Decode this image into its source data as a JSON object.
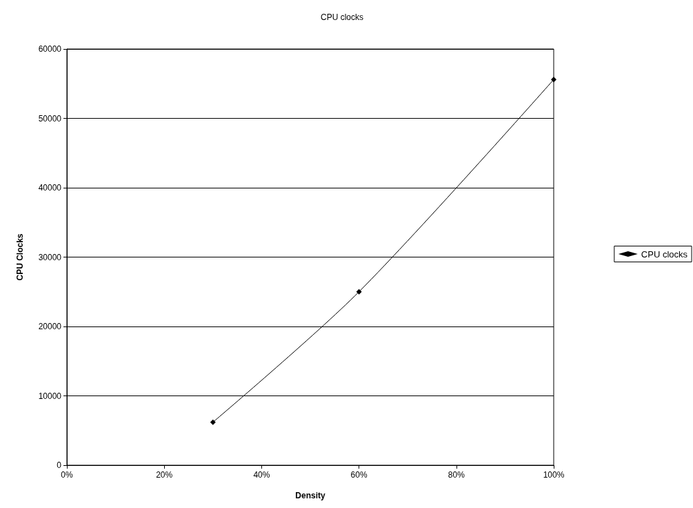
{
  "chart_data": {
    "type": "line",
    "title": "CPU clocks",
    "xlabel": "Density",
    "ylabel": "CPU Clocks",
    "x": [
      30,
      60,
      100
    ],
    "series": [
      {
        "name": "CPU clocks",
        "color": "#000000",
        "values": [
          6200,
          25000,
          55600
        ]
      }
    ],
    "xlim": [
      0,
      100
    ],
    "xticks": [
      {
        "value": 0,
        "label": "0%"
      },
      {
        "value": 20,
        "label": "20%"
      },
      {
        "value": 40,
        "label": "40%"
      },
      {
        "value": 60,
        "label": "60%"
      },
      {
        "value": 80,
        "label": "80%"
      },
      {
        "value": 100,
        "label": "100%"
      }
    ],
    "ylim": [
      0,
      60000
    ],
    "yticks": [
      0,
      10000,
      20000,
      30000,
      40000,
      50000,
      60000
    ],
    "grid": "y",
    "legend": "right",
    "marker": "diamond",
    "line_style": "solid"
  }
}
